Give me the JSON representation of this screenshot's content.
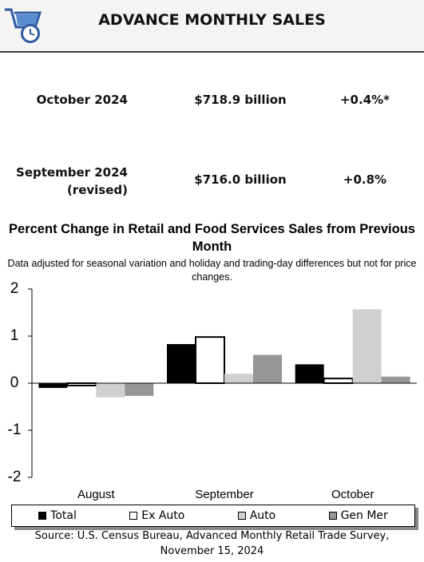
{
  "header": {
    "title": "ADVANCE MONTHLY SALES"
  },
  "table": {
    "rows": [
      {
        "period": [
          "October 2024"
        ],
        "value": "$718.9 billion",
        "change": "+0.4%*"
      },
      {
        "period": [
          "September 2024",
          "(revised)"
        ],
        "value": "$716.0 billion",
        "change": "+0.8%"
      }
    ]
  },
  "chart_data": {
    "type": "bar",
    "title": "Percent Change in Retail and Food Services Sales from Previous Month",
    "subtitle": "Data adjusted for seasonal variation and holiday and trading-day differences but not for price changes.",
    "categories": [
      "August",
      "September",
      "October"
    ],
    "series": [
      {
        "name": "Total",
        "color": "#000000",
        "values": [
          -0.1,
          0.83,
          0.4
        ]
      },
      {
        "name": "Ex Auto",
        "color": "#ffffff",
        "values": [
          -0.05,
          0.98,
          0.1
        ]
      },
      {
        "name": "Auto",
        "color": "#d0d0d0",
        "values": [
          -0.3,
          0.2,
          1.57
        ]
      },
      {
        "name": "Gen Mer",
        "color": "#969696",
        "values": [
          -0.27,
          0.6,
          0.14
        ]
      }
    ],
    "ylim": [
      -2,
      2
    ],
    "yticks": [
      -2,
      -1,
      0,
      1,
      2
    ]
  },
  "source": [
    "Source: U.S. Census Bureau, Advanced Monthly Retail Trade Survey,",
    "November 15, 2024"
  ]
}
